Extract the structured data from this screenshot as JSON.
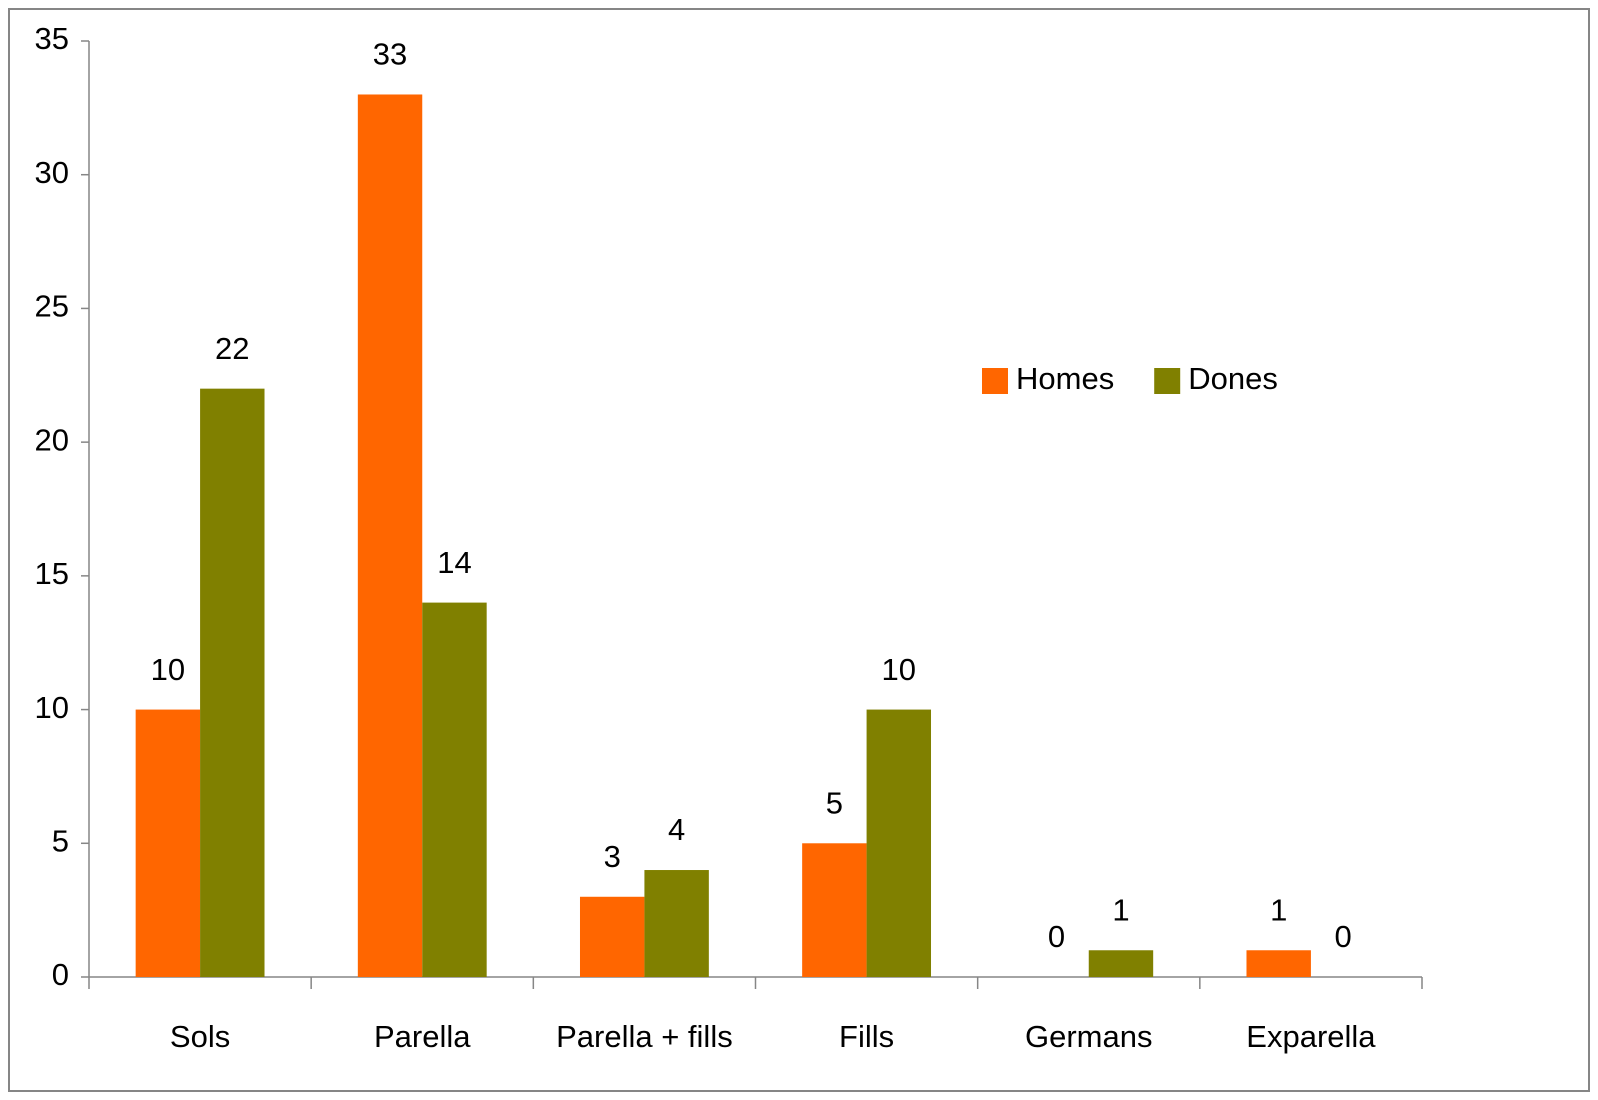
{
  "chart_data": {
    "type": "bar",
    "categories": [
      "Sols",
      "Parella",
      "Parella + fills",
      "Fills",
      "Germans",
      "Exparella"
    ],
    "series": [
      {
        "name": "Homes",
        "color": "#ff6600",
        "values": [
          10,
          33,
          3,
          5,
          0,
          1
        ]
      },
      {
        "name": "Dones",
        "color": "#808000",
        "values": [
          22,
          14,
          4,
          10,
          1,
          0
        ]
      }
    ],
    "ylim": [
      0,
      35
    ],
    "yticks": [
      0,
      5,
      10,
      15,
      20,
      25,
      30,
      35
    ],
    "grid": false,
    "legend": "right",
    "data_labels": true
  }
}
